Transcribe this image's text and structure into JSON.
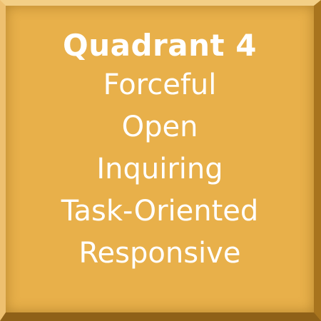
{
  "tile": {
    "title": "Quadrant 4",
    "traits": [
      "Forceful",
      "Open",
      "Inquiring",
      "Task-Oriented",
      "Responsive"
    ],
    "background_color": "#e8b04a",
    "text_color": "#ffffff"
  }
}
